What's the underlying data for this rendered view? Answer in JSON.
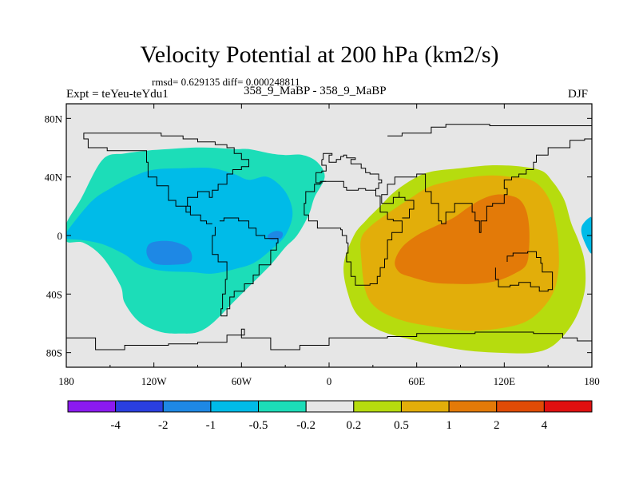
{
  "header": {
    "title": "Velocity Potential at 200 hPa (km2/s)",
    "stats": "rmsd= 0.629135 diff= 0.000248811",
    "expt": "Expt = teYeu-teYdu1",
    "subtitle": "358_9_MaBP - 358_9_MaBP",
    "season": "DJF"
  },
  "chart_data": {
    "type": "heatmap",
    "title": "Velocity Potential at 200 hPa (km2/s)",
    "xlabel": "",
    "ylabel": "",
    "xlim": [
      -180,
      180
    ],
    "ylim": [
      -90,
      90
    ],
    "x_ticks": [
      {
        "value": -180,
        "label": "180"
      },
      {
        "value": -120,
        "label": "120W"
      },
      {
        "value": -60,
        "label": "60W"
      },
      {
        "value": 0,
        "label": "0"
      },
      {
        "value": 60,
        "label": "60E"
      },
      {
        "value": 120,
        "label": "120E"
      },
      {
        "value": 180,
        "label": "180"
      }
    ],
    "y_ticks": [
      {
        "value": 80,
        "label": "80N"
      },
      {
        "value": 40,
        "label": "40N"
      },
      {
        "value": 0,
        "label": "0"
      },
      {
        "value": -40,
        "label": "40S"
      },
      {
        "value": -80,
        "label": "80S"
      }
    ],
    "colorbar": {
      "colors": [
        "#8B1AF0",
        "#2A3FE0",
        "#1E88E5",
        "#00BBE8",
        "#1CDDB8",
        "#E6E6E6",
        "#B6DC0E",
        "#E2AE0A",
        "#E37A08",
        "#E04B06",
        "#E01010"
      ],
      "labels": [
        "-4",
        "-2",
        "-1",
        "-0.5",
        "-0.2",
        "0.2",
        "0.5",
        "1",
        "2",
        "4"
      ]
    },
    "fields": [
      {
        "level": "-0.5 to -0.2",
        "color": "#1CDDB8",
        "pts": [
          [
            -180,
            8
          ],
          [
            -170,
            25
          ],
          [
            -155,
            52
          ],
          [
            -140,
            56
          ],
          [
            -125,
            58
          ],
          [
            -110,
            59
          ],
          [
            -95,
            60
          ],
          [
            -80,
            60
          ],
          [
            -65,
            59
          ],
          [
            -55,
            59
          ],
          [
            -40,
            56
          ],
          [
            -30,
            55
          ],
          [
            -18,
            55
          ],
          [
            -8,
            50
          ],
          [
            -3,
            40
          ],
          [
            -10,
            26
          ],
          [
            -14,
            14
          ],
          [
            -22,
            0
          ],
          [
            -30,
            -8
          ],
          [
            -40,
            -20
          ],
          [
            -55,
            -35
          ],
          [
            -65,
            -45
          ],
          [
            -80,
            -60
          ],
          [
            -90,
            -66
          ],
          [
            -100,
            -67
          ],
          [
            -115,
            -66
          ],
          [
            -130,
            -59
          ],
          [
            -140,
            -46
          ],
          [
            -143,
            -34
          ],
          [
            -155,
            -15
          ],
          [
            -168,
            -5
          ],
          [
            -180,
            -4
          ]
        ]
      },
      {
        "level": "-1 to -0.5",
        "color": "#00BBE8",
        "pts": [
          [
            -180,
            2
          ],
          [
            -163,
            23
          ],
          [
            -150,
            32
          ],
          [
            -135,
            40
          ],
          [
            -120,
            45
          ],
          [
            -100,
            46
          ],
          [
            -80,
            46
          ],
          [
            -65,
            42
          ],
          [
            -55,
            38
          ],
          [
            -42,
            40
          ],
          [
            -30,
            30
          ],
          [
            -25,
            15
          ],
          [
            -30,
            0
          ],
          [
            -40,
            -10
          ],
          [
            -52,
            -19
          ],
          [
            -65,
            -23
          ],
          [
            -80,
            -26
          ],
          [
            -95,
            -25
          ],
          [
            -115,
            -24
          ],
          [
            -130,
            -20
          ],
          [
            -140,
            -13
          ],
          [
            -155,
            -6
          ],
          [
            -170,
            -3
          ],
          [
            -180,
            -2
          ]
        ]
      },
      {
        "level": "-2 to -1",
        "color": "#1E88E5",
        "pts": [
          [
            -122,
            -5
          ],
          [
            -108,
            -4
          ],
          [
            -96,
            -9
          ],
          [
            -95,
            -18
          ],
          [
            -108,
            -20
          ],
          [
            -120,
            -19
          ],
          [
            -125,
            -12
          ]
        ]
      },
      {
        "level": "-2 to -1",
        "color": "#1E88E5",
        "pts": [
          [
            -42,
            0
          ],
          [
            -37,
            3
          ],
          [
            -32,
            2
          ],
          [
            -33,
            -2
          ],
          [
            -40,
            -3
          ]
        ]
      },
      {
        "level": "-1 to -0.5",
        "color": "#00BBE8",
        "pts": [
          [
            180,
            -12
          ],
          [
            174,
            -2
          ],
          [
            173,
            6
          ],
          [
            178,
            12
          ],
          [
            180,
            10
          ]
        ]
      },
      {
        "level": "0.2 to 0.5",
        "color": "#B6DC0E",
        "pts": [
          [
            10,
            -20
          ],
          [
            13,
            -40
          ],
          [
            20,
            -55
          ],
          [
            35,
            -65
          ],
          [
            60,
            -72
          ],
          [
            90,
            -78
          ],
          [
            115,
            -80
          ],
          [
            140,
            -80
          ],
          [
            155,
            -74
          ],
          [
            168,
            -58
          ],
          [
            175,
            -38
          ],
          [
            175,
            -18
          ],
          [
            171,
            -4
          ],
          [
            166,
            8
          ],
          [
            162,
            22
          ],
          [
            158,
            30
          ],
          [
            153,
            37
          ],
          [
            146,
            44
          ],
          [
            132,
            47
          ],
          [
            112,
            48
          ],
          [
            90,
            46
          ],
          [
            72,
            44
          ],
          [
            60,
            40
          ],
          [
            45,
            30
          ],
          [
            35,
            20
          ],
          [
            25,
            10
          ],
          [
            17,
            0
          ]
        ]
      },
      {
        "level": "0.5 to 1",
        "color": "#E2AE0A",
        "pts": [
          [
            22,
            -15
          ],
          [
            25,
            -38
          ],
          [
            33,
            -50
          ],
          [
            50,
            -58
          ],
          [
            70,
            -62
          ],
          [
            95,
            -65
          ],
          [
            120,
            -63
          ],
          [
            138,
            -57
          ],
          [
            152,
            -42
          ],
          [
            157,
            -25
          ],
          [
            157,
            -5
          ],
          [
            155,
            10
          ],
          [
            152,
            22
          ],
          [
            146,
            32
          ],
          [
            138,
            38
          ],
          [
            125,
            40
          ],
          [
            112,
            41
          ],
          [
            98,
            40
          ],
          [
            82,
            37
          ],
          [
            68,
            33
          ],
          [
            55,
            25
          ],
          [
            40,
            15
          ],
          [
            28,
            6
          ],
          [
            22,
            -2
          ]
        ]
      },
      {
        "level": "1 to 2",
        "color": "#E37A08",
        "pts": [
          [
            45,
            -18
          ],
          [
            48,
            -25
          ],
          [
            55,
            -28
          ],
          [
            70,
            -32
          ],
          [
            85,
            -33
          ],
          [
            100,
            -33
          ],
          [
            115,
            -31
          ],
          [
            127,
            -26
          ],
          [
            135,
            -20
          ],
          [
            137,
            -8
          ],
          [
            137,
            6
          ],
          [
            135,
            17
          ],
          [
            131,
            24
          ],
          [
            125,
            27
          ],
          [
            115,
            28
          ],
          [
            105,
            25
          ],
          [
            95,
            19
          ],
          [
            85,
            12
          ],
          [
            72,
            6
          ],
          [
            60,
            0
          ],
          [
            50,
            -8
          ]
        ]
      }
    ],
    "coastlines": [
      [
        [
          -5,
          52
        ],
        [
          -4,
          56
        ],
        [
          2,
          55
        ],
        [
          0,
          50
        ],
        [
          5,
          52
        ],
        [
          8,
          54
        ],
        [
          10,
          55
        ],
        [
          12,
          53
        ],
        [
          18,
          52
        ],
        [
          15,
          49
        ],
        [
          22,
          46
        ],
        [
          25,
          43
        ],
        [
          28,
          42
        ],
        [
          34,
          38
        ],
        [
          36,
          36
        ],
        [
          34,
          32
        ],
        [
          32,
          31
        ],
        [
          25,
          32
        ],
        [
          20,
          31
        ],
        [
          12,
          33
        ],
        [
          10,
          37
        ],
        [
          3,
          37
        ],
        [
          -5,
          36
        ],
        [
          -9,
          38
        ],
        [
          -9,
          43
        ],
        [
          -5,
          44
        ],
        [
          -2,
          48
        ]
      ]
    ]
  }
}
